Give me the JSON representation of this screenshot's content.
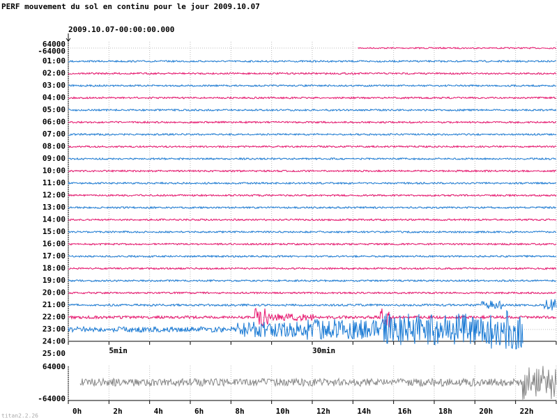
{
  "header": {
    "title": "PERF mouvement du sol en continu pour le jour 2009.10.07",
    "start_time": "2009.10.07-00:00:00.000"
  },
  "trace_panel": {
    "scale_labels": [
      "64000",
      "-64000"
    ],
    "hour_labels": [
      "01:00",
      "02:00",
      "03:00",
      "04:00",
      "05:00",
      "06:00",
      "07:00",
      "08:00",
      "09:00",
      "10:00",
      "11:00",
      "12:00",
      "13:00",
      "14:00",
      "15:00",
      "16:00",
      "17:00",
      "18:00",
      "19:00",
      "20:00",
      "21:00",
      "22:00",
      "23:00",
      "24:00",
      "25:00"
    ],
    "minute_labels": [
      "5min",
      "30min"
    ]
  },
  "overview_panel": {
    "scale_labels": [
      "64000",
      "-64000"
    ],
    "hour_labels": [
      "0h",
      "2h",
      "4h",
      "6h",
      "8h",
      "10h",
      "12h",
      "14h",
      "16h",
      "18h",
      "20h",
      "22h"
    ]
  },
  "footer": "titan2.2.26"
}
